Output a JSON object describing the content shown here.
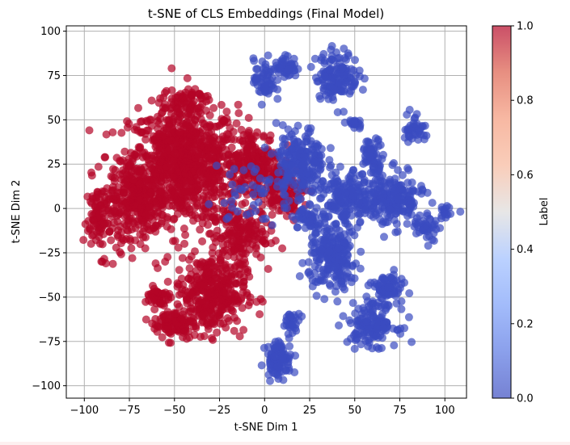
{
  "chart_data": {
    "type": "scatter",
    "title": "t-SNE of CLS Embeddings (Final Model)",
    "xlabel": "t-SNE Dim 1",
    "ylabel": "t-SNE Dim 2",
    "xlim": [
      -110,
      112
    ],
    "ylim": [
      -107,
      103
    ],
    "xticks": [
      "−100",
      "−75",
      "−50",
      "−25",
      "0",
      "25",
      "50",
      "75",
      "100"
    ],
    "yticks": [
      "100",
      "75",
      "50",
      "25",
      "0",
      "−25",
      "−50",
      "−75",
      "−100"
    ],
    "grid": true,
    "colormap": "coolwarm",
    "colorbar": {
      "label": "Label",
      "range": [
        0,
        1
      ],
      "ticks": [
        "1.0",
        "0.8",
        "0.6",
        "0.4",
        "0.2",
        "0.0"
      ]
    },
    "series": [
      {
        "label_value": 1,
        "color": "#b40426",
        "clusters": [
          {
            "center": [
              -45,
              25
            ],
            "spread": [
              20,
              22
            ],
            "n": 900
          },
          {
            "center": [
              -70,
              5
            ],
            "spread": [
              10,
              14
            ],
            "n": 250
          },
          {
            "center": [
              -90,
              -5
            ],
            "spread": [
              7,
              14
            ],
            "n": 120
          },
          {
            "center": [
              -30,
              -48
            ],
            "spread": [
              13,
              15
            ],
            "n": 380
          },
          {
            "center": [
              -50,
              -65
            ],
            "spread": [
              8,
              6
            ],
            "n": 90
          },
          {
            "center": [
              -5,
              25
            ],
            "spread": [
              10,
              14
            ],
            "n": 200
          },
          {
            "center": [
              10,
              10
            ],
            "spread": [
              8,
              10
            ],
            "n": 120
          },
          {
            "center": [
              -15,
              -15
            ],
            "spread": [
              10,
              10
            ],
            "n": 150
          },
          {
            "center": [
              -60,
              -50
            ],
            "spread": [
              4,
              4
            ],
            "n": 40
          },
          {
            "center": [
              -45,
              60
            ],
            "spread": [
              8,
              5
            ],
            "n": 60
          }
        ]
      },
      {
        "label_value": 0,
        "color": "#3b4cc0",
        "clusters": [
          {
            "center": [
              0,
              72
            ],
            "spread": [
              4,
              8
            ],
            "n": 60
          },
          {
            "center": [
              12,
              80
            ],
            "spread": [
              4,
              4
            ],
            "n": 50
          },
          {
            "center": [
              40,
              75
            ],
            "spread": [
              8,
              9
            ],
            "n": 140
          },
          {
            "center": [
              20,
              25
            ],
            "spread": [
              9,
              14
            ],
            "n": 220
          },
          {
            "center": [
              38,
              -28
            ],
            "spread": [
              9,
              12
            ],
            "n": 220
          },
          {
            "center": [
              60,
              -65
            ],
            "spread": [
              9,
              8
            ],
            "n": 150
          },
          {
            "center": [
              68,
              -45
            ],
            "spread": [
              6,
              5
            ],
            "n": 70
          },
          {
            "center": [
              70,
              5
            ],
            "spread": [
              12,
              10
            ],
            "n": 220
          },
          {
            "center": [
              45,
              5
            ],
            "spread": [
              8,
              10
            ],
            "n": 160
          },
          {
            "center": [
              60,
              30
            ],
            "spread": [
              4,
              6
            ],
            "n": 60
          },
          {
            "center": [
              8,
              -85
            ],
            "spread": [
              5,
              7
            ],
            "n": 90
          },
          {
            "center": [
              15,
              -65
            ],
            "spread": [
              3,
              4
            ],
            "n": 30
          },
          {
            "center": [
              25,
              -5
            ],
            "spread": [
              6,
              5
            ],
            "n": 50
          },
          {
            "center": [
              83,
              45
            ],
            "spread": [
              4,
              6
            ],
            "n": 40
          },
          {
            "center": [
              90,
              -10
            ],
            "spread": [
              5,
              5
            ],
            "n": 40
          },
          {
            "center": [
              100,
              -3
            ],
            "spread": [
              2,
              3
            ],
            "n": 15
          },
          {
            "center": [
              50,
              48
            ],
            "spread": [
              3,
              2
            ],
            "n": 20
          },
          {
            "center": [
              -10,
              10
            ],
            "spread": [
              12,
              12
            ],
            "n": 40
          }
        ]
      }
    ]
  }
}
